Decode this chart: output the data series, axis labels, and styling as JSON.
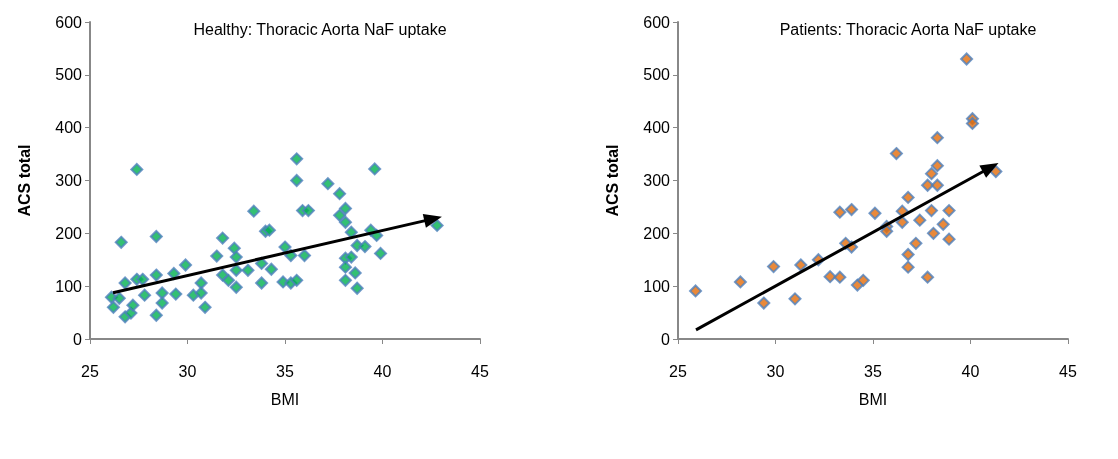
{
  "chart_data": [
    {
      "type": "scatter",
      "title": "Healthy: Thoracic Aorta NaF uptake",
      "xlabel": "BMI",
      "ylabel": "ACS total",
      "xlim": [
        25,
        45
      ],
      "xticks": [
        25,
        30,
        35,
        40,
        45
      ],
      "ylim": [
        0,
        600
      ],
      "yticks": [
        0,
        100,
        200,
        300,
        400,
        500,
        600
      ],
      "marker": "diamond",
      "grid": false,
      "series": [
        {
          "type": "scatter",
          "color": "#00b050",
          "x": [
            26.2,
            26.1,
            26.6,
            26.8,
            26.8,
            26.5,
            27.1,
            27.2,
            27.4,
            27.4,
            27.7,
            27.8,
            28.4,
            28.4,
            28.4,
            28.7,
            28.7,
            29.3,
            29.4,
            29.9,
            30.3,
            30.7,
            30.7,
            30.9,
            31.5,
            31.8,
            31.8,
            32.1,
            32.4,
            32.5,
            32.5,
            32.5,
            33.1,
            33.4,
            34.0,
            33.8,
            33.8,
            34.3,
            35.6,
            35.6,
            34.2,
            35.0,
            35.3,
            34.9,
            35.3,
            35.6,
            35.9,
            36.2,
            36.0,
            37.2,
            37.8,
            38.1,
            37.8,
            38.1,
            39.6,
            38.4,
            39.4,
            39.7,
            38.7,
            39.1,
            38.1,
            38.4,
            39.9,
            38.1,
            38.1,
            38.6,
            38.7,
            42.8
          ],
          "values": [
            60,
            79,
            183,
            106,
            42,
            77,
            49,
            64,
            321,
            113,
            113,
            83,
            194,
            121,
            45,
            87,
            68,
            124,
            85,
            140,
            83,
            106,
            87,
            60,
            157,
            191,
            121,
            111,
            172,
            155,
            98,
            130,
            130,
            242,
            204,
            143,
            106,
            132,
            341,
            300,
            206,
            174,
            158,
            108,
            106,
            111,
            243,
            243,
            158,
            294,
            275,
            247,
            234,
            221,
            322,
            202,
            206,
            196,
            177,
            175,
            153,
            155,
            162,
            136,
            111,
            125,
            96,
            215
          ]
        }
      ]
    },
    {
      "type": "scatter",
      "title": "Patients: Thoracic Aorta NaF uptake",
      "xlabel": "BMI",
      "ylabel": "ACS total",
      "xlim": [
        25,
        45
      ],
      "xticks": [
        25,
        30,
        35,
        40,
        45
      ],
      "ylim": [
        0,
        600
      ],
      "yticks": [
        0,
        100,
        200,
        300,
        400,
        500,
        600
      ],
      "marker": "diamond",
      "grid": false,
      "series": [
        {
          "type": "scatter",
          "color": "#e36c09",
          "x": [
            25.9,
            28.2,
            29.4,
            29.9,
            31.0,
            31.3,
            32.2,
            32.8,
            33.3,
            33.3,
            39.8,
            40.1,
            40.1,
            38.3,
            36.2,
            38.3,
            38.0,
            37.8,
            38.3,
            41.3,
            36.8,
            33.9,
            35.1,
            36.5,
            36.5,
            37.4,
            38.0,
            38.9,
            35.7,
            35.7,
            38.6,
            38.1,
            38.9,
            33.6,
            33.9,
            34.2,
            34.5,
            37.2,
            36.8,
            36.8,
            37.8
          ],
          "values": [
            91,
            108,
            68,
            137,
            76,
            140,
            150,
            118,
            117,
            240,
            530,
            417,
            408,
            381,
            351,
            328,
            313,
            291,
            291,
            317,
            268,
            245,
            238,
            242,
            221,
            225,
            243,
            243,
            213,
            204,
            217,
            200,
            189,
            181,
            174,
            102,
            111,
            181,
            160,
            136,
            117
          ]
        }
      ]
    }
  ]
}
